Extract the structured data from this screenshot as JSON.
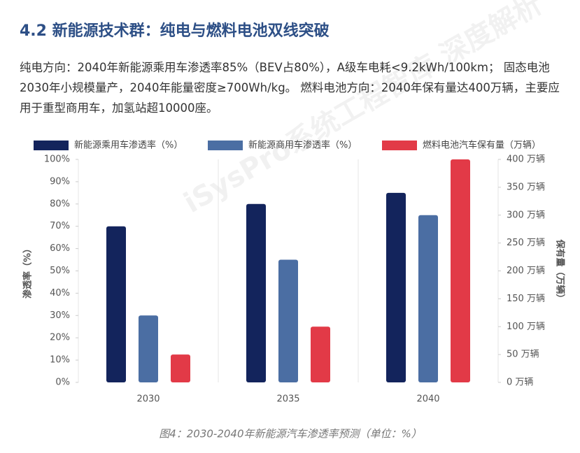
{
  "heading": "4.2 新能源技术群：纯电与燃料电池双线突破",
  "paragraph": "纯电方向：2040年新能源乘用车渗透率85%（BEV占80%），A级车电耗<9.2kWh/100km； 固态电池2030年小规模量产，2040年能量密度≥700Wh/kg。 燃料电池方向：2040年保有量达400万辆，主要应用于重型商用车，加氢站超10000座。",
  "watermark": "iSysPro系统工程智库 深度解析",
  "chart_data": {
    "type": "bar",
    "categories": [
      "2030",
      "2035",
      "2040"
    ],
    "series": [
      {
        "name": "新能源乘用车渗透率（%）",
        "color": "#13245c",
        "values": [
          70,
          80,
          85
        ]
      },
      {
        "name": "新能源商用车渗透率（%）",
        "color": "#4b6ea3",
        "values": [
          30,
          55,
          75
        ]
      },
      {
        "name": "燃料电池汽车保有量（万辆）",
        "color": "#e23a47",
        "values": [
          50,
          100,
          400
        ],
        "axis": "y2"
      }
    ],
    "ylabel": "渗透率（%）",
    "y2label": "保有量（万辆）",
    "ylim": [
      0,
      100
    ],
    "yticks": [
      {
        "value": 0,
        "label": "0%"
      },
      {
        "value": 10,
        "label": "10%"
      },
      {
        "value": 20,
        "label": "20%"
      },
      {
        "value": 30,
        "label": "30%"
      },
      {
        "value": 40,
        "label": "40%"
      },
      {
        "value": 50,
        "label": "50%"
      },
      {
        "value": 60,
        "label": "60%"
      },
      {
        "value": 70,
        "label": "70%"
      },
      {
        "value": 80,
        "label": "80%"
      },
      {
        "value": 90,
        "label": "90%"
      },
      {
        "value": 100,
        "label": "100%"
      }
    ],
    "y2lim": [
      0,
      400
    ],
    "y2ticks": [
      {
        "value": 0,
        "label": "0 万辆"
      },
      {
        "value": 50,
        "label": "50 万辆"
      },
      {
        "value": 100,
        "label": "100 万辆"
      },
      {
        "value": 150,
        "label": "150 万辆"
      },
      {
        "value": 200,
        "label": "200 万辆"
      },
      {
        "value": 250,
        "label": "250 万辆"
      },
      {
        "value": 300,
        "label": "300 万辆"
      },
      {
        "value": 350,
        "label": "350 万辆"
      },
      {
        "value": 400,
        "label": "400 万辆"
      }
    ],
    "legend": "top",
    "caption": "图4：2030-2040年新能源汽车渗透率预测（单位：%）"
  }
}
